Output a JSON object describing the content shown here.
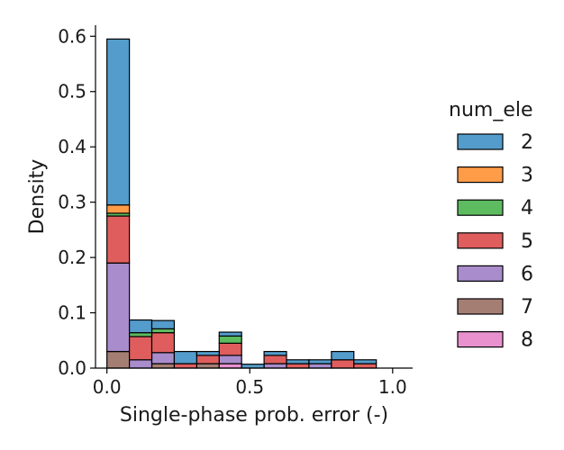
{
  "chart_data": {
    "type": "bar",
    "subtype": "stacked-histogram",
    "xlabel": "Single-phase prob. error (-)",
    "ylabel": "Density",
    "xlim": [
      -0.04,
      1.07
    ],
    "ylim": [
      0,
      0.62
    ],
    "xticks": [
      0.0,
      0.5,
      1.0
    ],
    "xtick_labels": [
      "0.0",
      "0.5",
      "1.0"
    ],
    "yticks": [
      0.0,
      0.1,
      0.2,
      0.3,
      0.4,
      0.5,
      0.6
    ],
    "ytick_labels": [
      "0.0",
      "0.1",
      "0.2",
      "0.3",
      "0.4",
      "0.5",
      "0.6"
    ],
    "bin_edges": [
      0.0,
      0.0786,
      0.1571,
      0.2357,
      0.3143,
      0.3929,
      0.4714,
      0.55,
      0.6286,
      0.7071,
      0.7857,
      0.8643,
      0.9429
    ],
    "grid": false,
    "legend": {
      "title": "num_ele",
      "placement": "right"
    },
    "series": [
      {
        "name": "7",
        "color": "#a57e73",
        "values": [
          0.03,
          0.0,
          0.008,
          0.0,
          0.008,
          0.0,
          0.0,
          0.0,
          0.0,
          0.0,
          0.0,
          0.0
        ]
      },
      {
        "name": "8",
        "color": "#e991cf",
        "values": [
          0.0,
          0.0,
          0.0,
          0.0,
          0.0,
          0.008,
          0.0,
          0.0,
          0.0,
          0.0,
          0.0,
          0.0
        ]
      },
      {
        "name": "6",
        "color": "#a98ccc",
        "values": [
          0.16,
          0.015,
          0.02,
          0.0,
          0.0,
          0.015,
          0.0,
          0.008,
          0.0,
          0.008,
          0.0,
          0.0
        ]
      },
      {
        "name": "5",
        "color": "#df5e5d",
        "values": [
          0.085,
          0.042,
          0.036,
          0.008,
          0.015,
          0.022,
          0.0,
          0.015,
          0.008,
          0.0,
          0.015,
          0.008
        ]
      },
      {
        "name": "4",
        "color": "#5dbb60",
        "values": [
          0.005,
          0.007,
          0.007,
          0.0,
          0.0,
          0.013,
          0.0,
          0.0,
          0.0,
          0.0,
          0.0,
          0.0
        ]
      },
      {
        "name": "3",
        "color": "#fe9c48",
        "values": [
          0.015,
          0.0,
          0.0,
          0.0,
          0.0,
          0.0,
          0.0,
          0.0,
          0.0,
          0.0,
          0.0,
          0.0
        ]
      },
      {
        "name": "2",
        "color": "#539ccb",
        "values": [
          0.3,
          0.023,
          0.015,
          0.022,
          0.007,
          0.007,
          0.007,
          0.007,
          0.007,
          0.007,
          0.015,
          0.007
        ]
      }
    ],
    "legend_order": [
      "2",
      "3",
      "4",
      "5",
      "6",
      "7",
      "8"
    ]
  }
}
